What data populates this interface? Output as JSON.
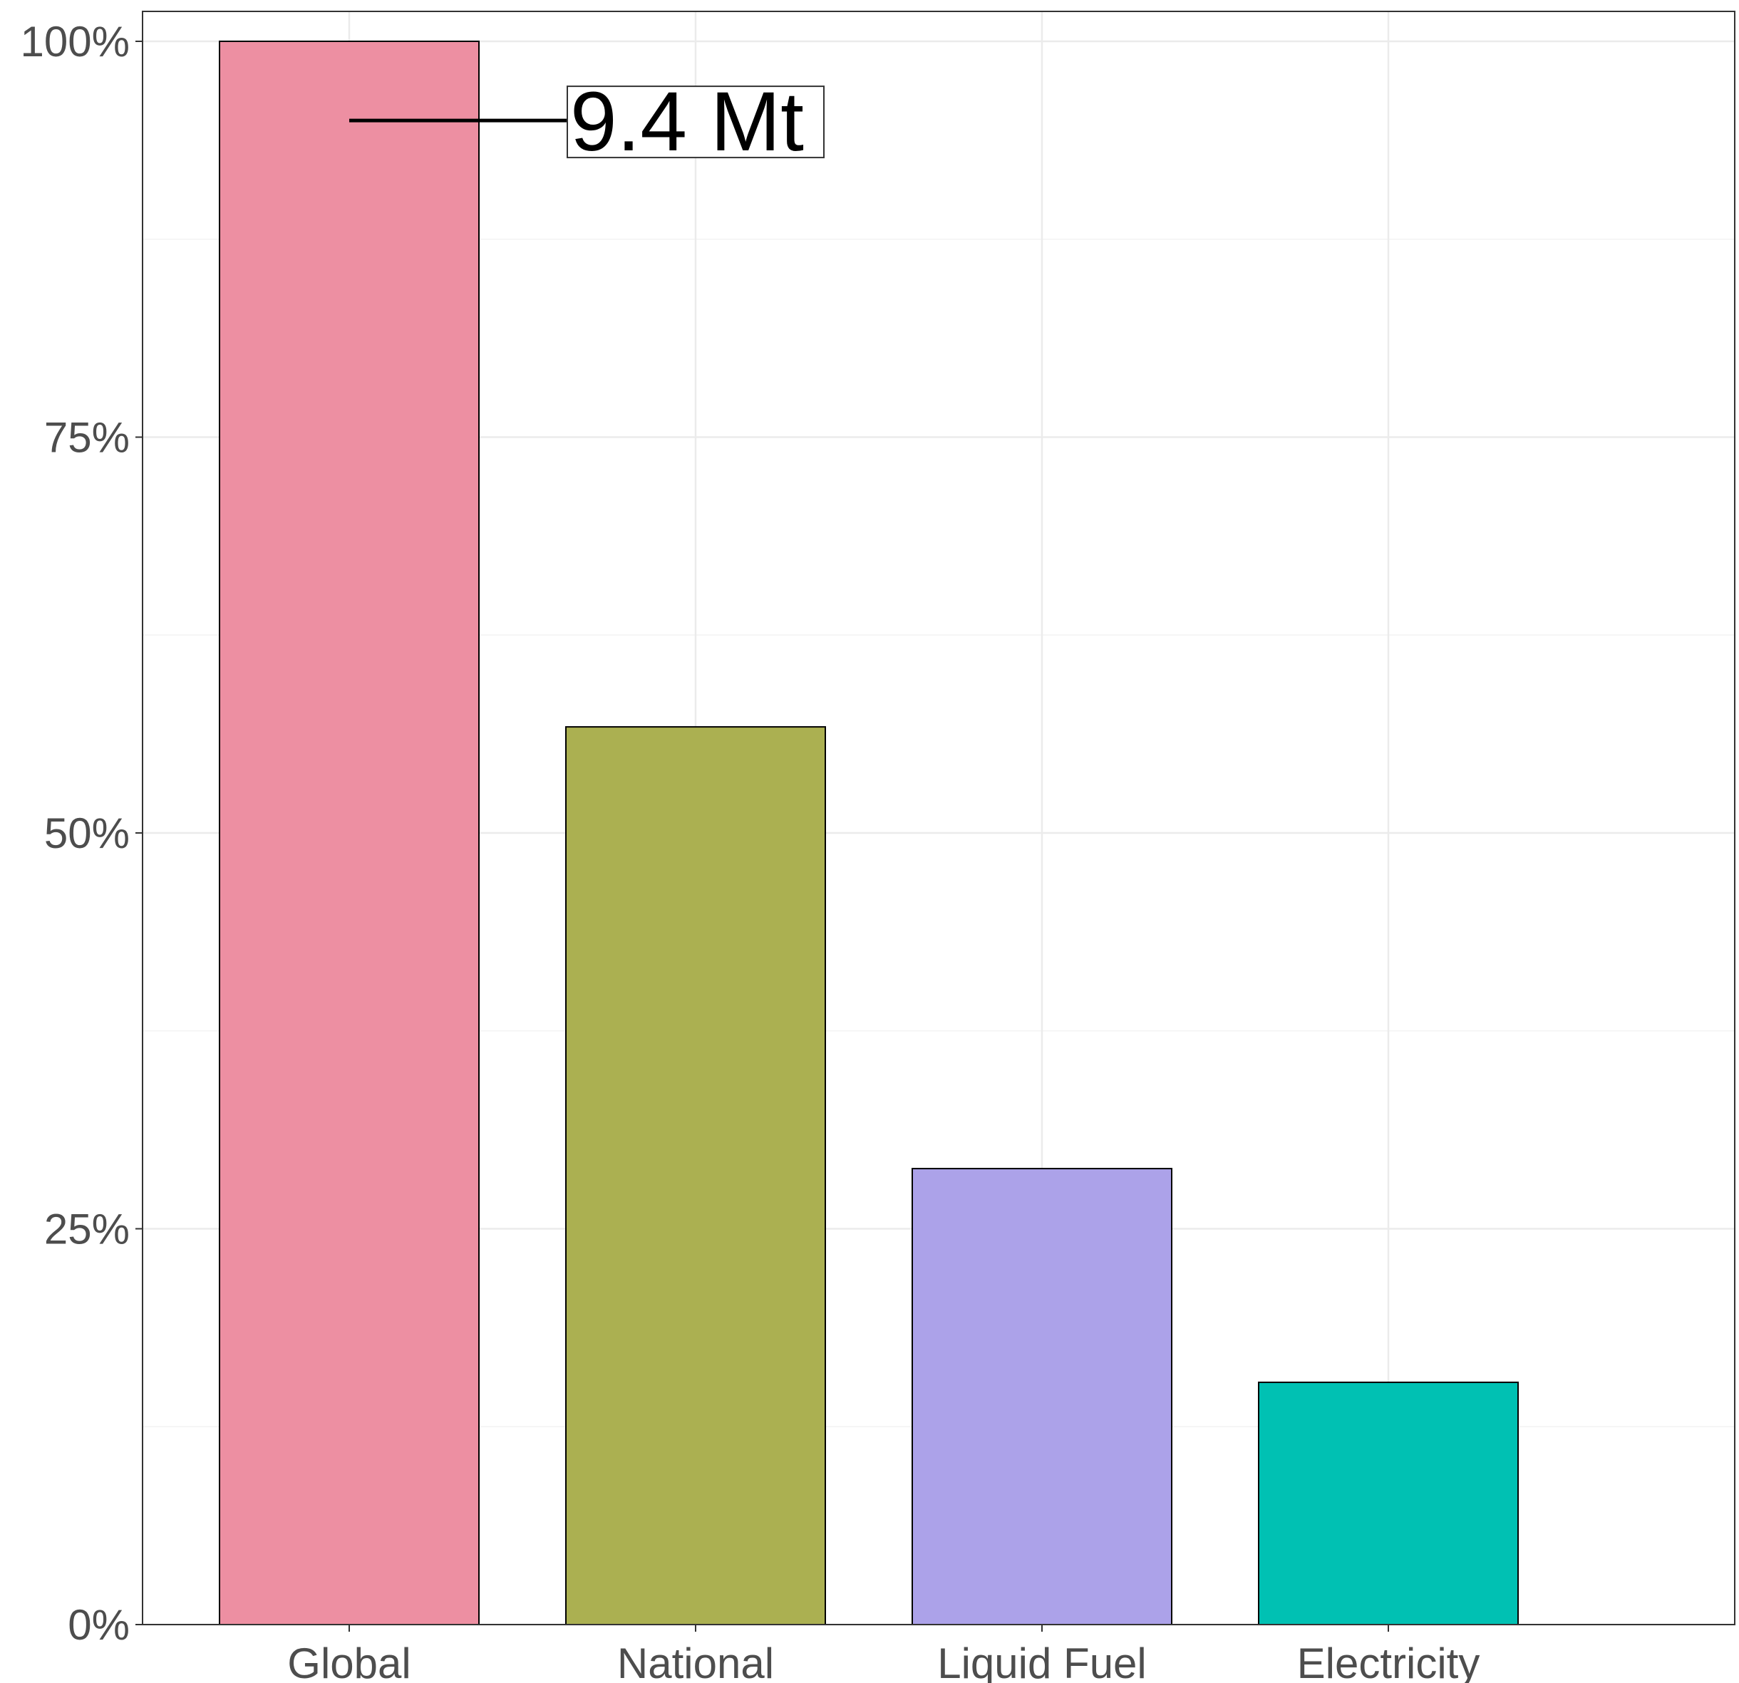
{
  "chart_data": {
    "type": "bar",
    "title": "",
    "xlabel": "",
    "ylabel": "",
    "categories": [
      "Global",
      "National",
      "Liquid Fuel",
      "Electricity"
    ],
    "values": [
      100,
      56.7,
      28.8,
      15.3
    ],
    "colors": [
      "#ED8FA2",
      "#ABB051",
      "#ACA2E9",
      "#00C1B3"
    ],
    "ylim": [
      0,
      100
    ],
    "yticks": [
      0,
      25,
      50,
      75,
      100
    ],
    "ytick_labels": [
      "0%",
      "25%",
      "50%",
      "75%",
      "100%"
    ],
    "grid": true,
    "legend": "none",
    "annotation": {
      "text": "9.4 Mt",
      "category": "Global",
      "value": 95
    }
  }
}
